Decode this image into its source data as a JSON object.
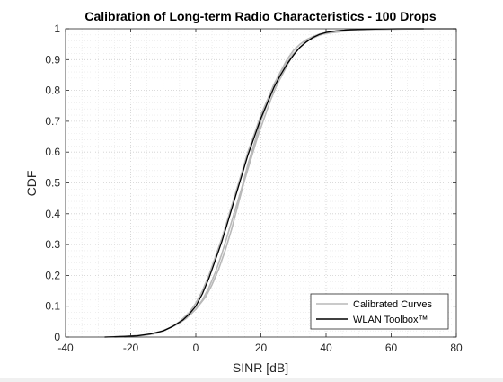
{
  "chart_data": {
    "type": "line",
    "title": "Calibration of Long-term Radio Characteristics - 100 Drops",
    "xlabel": "SINR [dB]",
    "ylabel": "CDF",
    "xlim": [
      -40,
      80
    ],
    "ylim": [
      0,
      1
    ],
    "xticks": [
      -40,
      -20,
      0,
      20,
      40,
      60,
      80
    ],
    "yticks": [
      0,
      0.1,
      0.2,
      0.3,
      0.4,
      0.5,
      0.6,
      0.7,
      0.8,
      0.9,
      1
    ],
    "grid": "major and minor, dotted",
    "legend_position": "bottom-right",
    "legend": [
      "Calibrated Curves",
      "WLAN Toolbox™"
    ],
    "colors": {
      "calibrated": "#b8b8b8",
      "wlan": "#000000",
      "axes": "#262626",
      "grid": "#d9d9d9"
    },
    "series": [
      {
        "name": "Calibrated Curves",
        "curves": [
          {
            "x": [
              -28,
              -22,
              -16,
              -12,
              -8,
              -5,
              -2,
              0,
              2,
              4,
              6,
              8,
              10,
              12,
              14,
              16,
              18,
              20,
              22,
              24,
              26,
              28,
              30,
              32,
              34,
              36,
              38,
              40,
              44,
              48,
              52,
              60,
              70,
              80
            ],
            "y": [
              0,
              0.002,
              0.006,
              0.012,
              0.03,
              0.05,
              0.08,
              0.11,
              0.15,
              0.2,
              0.26,
              0.32,
              0.39,
              0.46,
              0.53,
              0.6,
              0.66,
              0.72,
              0.77,
              0.82,
              0.86,
              0.89,
              0.92,
              0.94,
              0.96,
              0.97,
              0.98,
              0.985,
              0.99,
              0.995,
              0.997,
              0.999,
              1,
              1
            ]
          },
          {
            "x": [
              -25,
              -20,
              -15,
              -10,
              -6,
              -3,
              0,
              2,
              4,
              6,
              8,
              10,
              12,
              14,
              16,
              18,
              20,
              22,
              24,
              26,
              28,
              30,
              32,
              34,
              36,
              38,
              40,
              42,
              46,
              50,
              56,
              65,
              80
            ],
            "y": [
              0,
              0.003,
              0.008,
              0.02,
              0.04,
              0.06,
              0.09,
              0.12,
              0.16,
              0.21,
              0.27,
              0.34,
              0.41,
              0.48,
              0.56,
              0.63,
              0.7,
              0.76,
              0.81,
              0.86,
              0.9,
              0.93,
              0.95,
              0.965,
              0.975,
              0.983,
              0.988,
              0.992,
              0.995,
              0.997,
              0.999,
              1,
              1
            ]
          },
          {
            "x": [
              -22,
              -17,
              -13,
              -9,
              -5,
              -2,
              0,
              3,
              5,
              7,
              9,
              11,
              13,
              15,
              17,
              19,
              21,
              23,
              25,
              27,
              29,
              31,
              33,
              35,
              37,
              39,
              42,
              45,
              50,
              55,
              62,
              72,
              80
            ],
            "y": [
              0,
              0.004,
              0.01,
              0.025,
              0.045,
              0.07,
              0.09,
              0.13,
              0.17,
              0.22,
              0.28,
              0.35,
              0.43,
              0.51,
              0.58,
              0.65,
              0.71,
              0.77,
              0.82,
              0.86,
              0.9,
              0.93,
              0.95,
              0.965,
              0.975,
              0.983,
              0.99,
              0.994,
              0.997,
              0.998,
              0.999,
              1,
              1
            ]
          }
        ]
      },
      {
        "name": "WLAN Toolbox™",
        "x": [
          -28,
          -22,
          -18,
          -14,
          -10,
          -7,
          -4,
          -2,
          0,
          2,
          4,
          6,
          8,
          10,
          12,
          14,
          16,
          18,
          20,
          22,
          24,
          26,
          28,
          30,
          32,
          34,
          36,
          38,
          40,
          43,
          46,
          50,
          55,
          62,
          70
        ],
        "y": [
          0,
          0.002,
          0.004,
          0.01,
          0.02,
          0.035,
          0.055,
          0.075,
          0.1,
          0.14,
          0.19,
          0.25,
          0.31,
          0.38,
          0.45,
          0.52,
          0.59,
          0.65,
          0.71,
          0.76,
          0.81,
          0.85,
          0.885,
          0.915,
          0.94,
          0.958,
          0.972,
          0.982,
          0.988,
          0.993,
          0.996,
          0.998,
          0.999,
          1,
          1
        ]
      }
    ]
  }
}
